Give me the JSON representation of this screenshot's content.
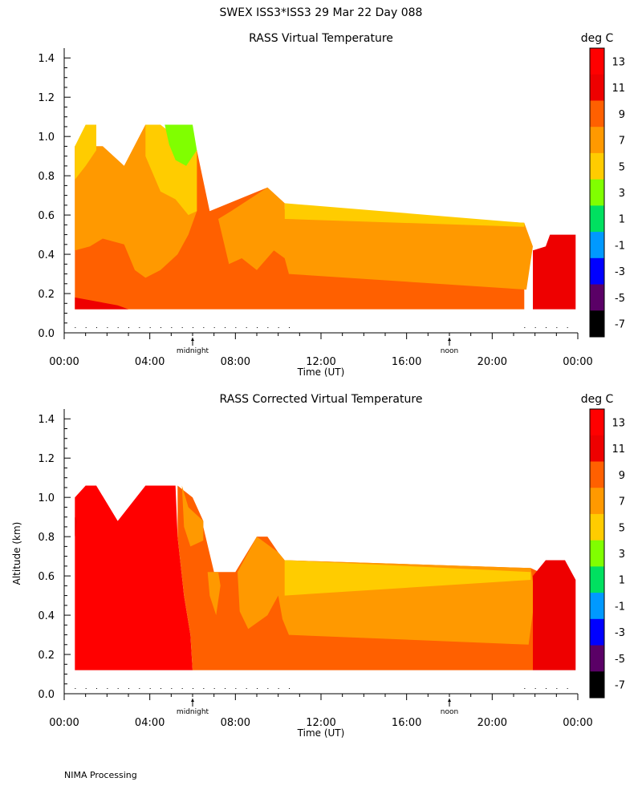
{
  "figure": {
    "header": "SWEX ISS3*ISS3  29 Mar 22 Day 088",
    "footer": "NIMA Processing"
  },
  "colorbar": {
    "unit": "deg C",
    "tick_labels": [
      "13",
      "11",
      "9",
      "7",
      "5",
      "3",
      "1",
      "-1",
      "-3",
      "-5",
      "-7"
    ],
    "levels": [
      {
        "min": 13,
        "max": 15,
        "color": "#ff0000"
      },
      {
        "min": 11,
        "max": 13,
        "color": "#ee0000"
      },
      {
        "min": 9,
        "max": 11,
        "color": "#ff6000"
      },
      {
        "min": 7,
        "max": 9,
        "color": "#ff9900"
      },
      {
        "min": 5,
        "max": 7,
        "color": "#ffcc00"
      },
      {
        "min": 3,
        "max": 5,
        "color": "#80ff00"
      },
      {
        "min": 1,
        "max": 3,
        "color": "#00e060"
      },
      {
        "min": -1,
        "max": 1,
        "color": "#0099ff"
      },
      {
        "min": -3,
        "max": -1,
        "color": "#0000ff"
      },
      {
        "min": -5,
        "max": -3,
        "color": "#5a0066"
      },
      {
        "min": -7,
        "max": -5,
        "color": "#000000"
      }
    ]
  },
  "chart_data": [
    {
      "type": "heatmap",
      "title": "RASS Virtual Temperature",
      "xlabel": "Time (UT)",
      "ylabel": "",
      "x_tick_labels": [
        "00:00",
        "04:00",
        "08:00",
        "12:00",
        "16:00",
        "20:00",
        "00:00"
      ],
      "x_markers": [
        "midnight",
        "noon"
      ],
      "y_tick_labels": [
        "0.0",
        "0.2",
        "0.4",
        "0.6",
        "0.8",
        "1.0",
        "1.2",
        "1.4"
      ],
      "ylim": [
        0,
        1.45
      ],
      "xlim_hours": [
        0,
        24
      ],
      "unit": "deg C",
      "layers": [
        {
          "label": "9 to 11",
          "color": "#ff6000",
          "outline": [
            [
              0.5,
              0.12
            ],
            [
              0.5,
              0.95
            ],
            [
              1.8,
              0.95
            ],
            [
              2.8,
              0.85
            ],
            [
              3.8,
              1.06
            ],
            [
              6.2,
              0.93
            ],
            [
              6.8,
              0.62
            ],
            [
              9.5,
              0.74
            ],
            [
              10.3,
              0.66
            ],
            [
              10.3,
              0.63
            ],
            [
              21.5,
              0.56
            ],
            [
              21.5,
              0.12
            ]
          ]
        },
        {
          "label": "7 to 9",
          "color": "#ff9900",
          "outline": [
            [
              0.5,
              0.42
            ],
            [
              0.5,
              0.95
            ],
            [
              1.8,
              0.95
            ],
            [
              2.8,
              0.85
            ],
            [
              3.8,
              1.06
            ],
            [
              6.2,
              0.93
            ],
            [
              6.2,
              0.62
            ],
            [
              5.8,
              0.5
            ],
            [
              5.3,
              0.4
            ],
            [
              4.5,
              0.32
            ],
            [
              3.8,
              0.28
            ],
            [
              3.3,
              0.32
            ],
            [
              2.8,
              0.45
            ],
            [
              1.8,
              0.48
            ],
            [
              1.2,
              0.44
            ]
          ]
        },
        {
          "label": "7 to 9",
          "color": "#ff9900",
          "outline": [
            [
              7.2,
              0.58
            ],
            [
              7.8,
              0.62
            ],
            [
              9.5,
              0.74
            ],
            [
              10.3,
              0.66
            ],
            [
              10.3,
              0.58
            ],
            [
              21.5,
              0.56
            ],
            [
              21.9,
              0.44
            ],
            [
              21.6,
              0.22
            ],
            [
              10.5,
              0.3
            ],
            [
              10.3,
              0.38
            ],
            [
              9.8,
              0.42
            ],
            [
              9.0,
              0.32
            ],
            [
              8.3,
              0.38
            ],
            [
              7.7,
              0.35
            ]
          ]
        },
        {
          "label": "5 to 7",
          "color": "#ffcc00",
          "outline": [
            [
              0.5,
              0.6
            ],
            [
              0.5,
              0.95
            ],
            [
              1.0,
              1.06
            ],
            [
              1.5,
              1.06
            ],
            [
              1.5,
              0.93
            ],
            [
              1.0,
              0.85
            ],
            [
              0.5,
              0.78
            ]
          ]
        },
        {
          "label": "5 to 7",
          "color": "#ffcc00",
          "outline": [
            [
              3.8,
              0.9
            ],
            [
              3.8,
              1.06
            ],
            [
              4.5,
              1.06
            ],
            [
              5.2,
              1.0
            ],
            [
              6.2,
              0.93
            ],
            [
              6.2,
              0.62
            ],
            [
              5.8,
              0.6
            ],
            [
              5.2,
              0.68
            ],
            [
              4.5,
              0.72
            ]
          ]
        },
        {
          "label": "5 to 7",
          "color": "#ffcc00",
          "outline": [
            [
              10.3,
              0.66
            ],
            [
              21.5,
              0.56
            ],
            [
              21.5,
              0.54
            ],
            [
              10.3,
              0.58
            ]
          ]
        },
        {
          "label": "3 to 5",
          "color": "#80ff00",
          "outline": [
            [
              4.7,
              1.06
            ],
            [
              6.0,
              1.06
            ],
            [
              6.2,
              0.93
            ],
            [
              5.7,
              0.85
            ],
            [
              5.2,
              0.88
            ],
            [
              4.9,
              0.96
            ]
          ]
        },
        {
          "label": "11 to 13",
          "color": "#ee0000",
          "outline": [
            [
              21.9,
              0.12
            ],
            [
              21.9,
              0.42
            ],
            [
              22.5,
              0.44
            ],
            [
              22.7,
              0.5
            ],
            [
              23.9,
              0.5
            ],
            [
              23.9,
              0.12
            ]
          ]
        },
        {
          "label": "11 to 13",
          "color": "#ee0000",
          "outline": [
            [
              0.5,
              0.12
            ],
            [
              0.5,
              0.18
            ],
            [
              2.5,
              0.14
            ],
            [
              3.0,
              0.12
            ]
          ]
        }
      ]
    },
    {
      "type": "heatmap",
      "title": "RASS Corrected Virtual Temperature",
      "xlabel": "Time (UT)",
      "ylabel": "Altitude (km)",
      "x_tick_labels": [
        "00:00",
        "04:00",
        "08:00",
        "12:00",
        "16:00",
        "20:00",
        "00:00"
      ],
      "x_markers": [
        "midnight",
        "noon"
      ],
      "y_tick_labels": [
        "0.0",
        "0.2",
        "0.4",
        "0.6",
        "0.8",
        "1.0",
        "1.2",
        "1.4"
      ],
      "ylim": [
        0,
        1.45
      ],
      "xlim_hours": [
        0,
        24
      ],
      "unit": "deg C",
      "layers": [
        {
          "label": "13 to 15",
          "color": "#ff0000",
          "outline": [
            [
              0.5,
              0.12
            ],
            [
              0.5,
              1.0
            ],
            [
              1.0,
              1.06
            ],
            [
              1.5,
              1.06
            ],
            [
              2.5,
              0.88
            ],
            [
              3.8,
              1.06
            ],
            [
              5.2,
              1.06
            ],
            [
              5.3,
              0.8
            ],
            [
              5.6,
              0.5
            ],
            [
              5.9,
              0.3
            ],
            [
              6.0,
              0.12
            ]
          ]
        },
        {
          "label": "9 to 11",
          "color": "#ff6000",
          "outline": [
            [
              5.3,
              1.06
            ],
            [
              5.3,
              0.8
            ],
            [
              5.6,
              0.5
            ],
            [
              5.9,
              0.3
            ],
            [
              6.0,
              0.12
            ],
            [
              21.9,
              0.12
            ],
            [
              21.9,
              0.45
            ],
            [
              22.2,
              0.62
            ],
            [
              21.8,
              0.64
            ],
            [
              10.3,
              0.68
            ],
            [
              10.0,
              0.72
            ],
            [
              9.5,
              0.8
            ],
            [
              9.0,
              0.8
            ],
            [
              8.0,
              0.62
            ],
            [
              7.0,
              0.62
            ],
            [
              6.5,
              0.85
            ],
            [
              6.5,
              0.88
            ],
            [
              6.0,
              1.0
            ]
          ]
        },
        {
          "label": "7 to 9",
          "color": "#ff9900",
          "outline": [
            [
              5.5,
              1.06
            ],
            [
              5.8,
              0.95
            ],
            [
              6.5,
              0.88
            ],
            [
              6.5,
              0.78
            ],
            [
              5.9,
              0.75
            ],
            [
              5.6,
              0.85
            ]
          ]
        },
        {
          "label": "7 to 9",
          "color": "#ff9900",
          "outline": [
            [
              6.7,
              0.62
            ],
            [
              7.2,
              0.62
            ],
            [
              7.3,
              0.55
            ],
            [
              7.1,
              0.4
            ],
            [
              6.8,
              0.5
            ]
          ]
        },
        {
          "label": "7 to 9",
          "color": "#ff9900",
          "outline": [
            [
              8.1,
              0.62
            ],
            [
              9.0,
              0.8
            ],
            [
              10.0,
              0.72
            ],
            [
              10.3,
              0.68
            ],
            [
              21.8,
              0.64
            ],
            [
              22.0,
              0.5
            ],
            [
              21.7,
              0.25
            ],
            [
              10.5,
              0.3
            ],
            [
              10.2,
              0.38
            ],
            [
              10.0,
              0.5
            ],
            [
              9.5,
              0.4
            ],
            [
              8.6,
              0.33
            ],
            [
              8.2,
              0.42
            ]
          ]
        },
        {
          "label": "5 to 7",
          "color": "#ffcc00",
          "outline": [
            [
              10.3,
              0.68
            ],
            [
              21.8,
              0.62
            ],
            [
              21.8,
              0.58
            ],
            [
              10.3,
              0.5
            ]
          ]
        },
        {
          "label": "11 to 13",
          "color": "#ee0000",
          "outline": [
            [
              21.9,
              0.12
            ],
            [
              21.9,
              0.6
            ],
            [
              22.5,
              0.68
            ],
            [
              23.4,
              0.68
            ],
            [
              23.9,
              0.58
            ],
            [
              23.9,
              0.12
            ]
          ]
        },
        {
          "label": "11 to 13",
          "color": "#ee0000",
          "outline": [
            [
              0.5,
              0.8
            ],
            [
              0.5,
              0.9
            ],
            [
              0.6,
              0.88
            ]
          ]
        }
      ]
    }
  ]
}
